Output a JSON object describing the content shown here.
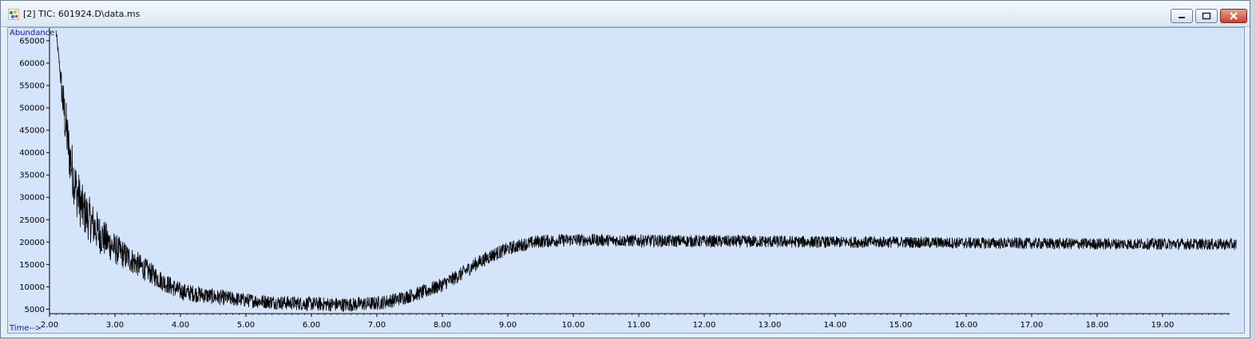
{
  "window": {
    "title": "[2] TIC: 601924.D\\data.ms",
    "icon": "chromatogram-app-icon",
    "controls": {
      "minimize": "minimize-icon",
      "maximize": "maximize-icon",
      "close": "close-icon"
    }
  },
  "chart_data": {
    "type": "line",
    "title": "",
    "ylabel": "Abundance",
    "xlabel": "Time-->",
    "xlim": [
      2.0,
      20.0
    ],
    "ylim": [
      4000,
      67500
    ],
    "y_ticks": [
      {
        "value": 5000,
        "label": "5000"
      },
      {
        "value": 10000,
        "label": "10000"
      },
      {
        "value": 15000,
        "label": "15000"
      },
      {
        "value": 20000,
        "label": "20000"
      },
      {
        "value": 25000,
        "label": "25000"
      },
      {
        "value": 30000,
        "label": "30000"
      },
      {
        "value": 35000,
        "label": "35000"
      },
      {
        "value": 40000,
        "label": "40000"
      },
      {
        "value": 45000,
        "label": "45000"
      },
      {
        "value": 50000,
        "label": "50000"
      },
      {
        "value": 55000,
        "label": "55000"
      },
      {
        "value": 60000,
        "label": "60000"
      },
      {
        "value": 65000,
        "label": "65000"
      }
    ],
    "x_ticks": [
      {
        "value": 2,
        "label": "2.00"
      },
      {
        "value": 3,
        "label": "3.00"
      },
      {
        "value": 4,
        "label": "4.00"
      },
      {
        "value": 5,
        "label": "5.00"
      },
      {
        "value": 6,
        "label": "6.00"
      },
      {
        "value": 7,
        "label": "7.00"
      },
      {
        "value": 8,
        "label": "8.00"
      },
      {
        "value": 9,
        "label": "9.00"
      },
      {
        "value": 10,
        "label": "10.00"
      },
      {
        "value": 11,
        "label": "11.00"
      },
      {
        "value": 12,
        "label": "12.00"
      },
      {
        "value": 13,
        "label": "13.00"
      },
      {
        "value": 14,
        "label": "14.00"
      },
      {
        "value": 15,
        "label": "15.00"
      },
      {
        "value": 16,
        "label": "16.00"
      },
      {
        "value": 17,
        "label": "17.00"
      },
      {
        "value": 18,
        "label": "18.00"
      },
      {
        "value": 19,
        "label": "19.00"
      }
    ],
    "series": [
      {
        "x": [
          2.1,
          2.15,
          2.2,
          2.25,
          2.3,
          2.4,
          2.5,
          2.75,
          3.0,
          3.25,
          3.5,
          3.75,
          4.0,
          4.5,
          5.0,
          5.5,
          6.0,
          6.5,
          7.0,
          7.25,
          7.5,
          7.75,
          8.0,
          8.25,
          8.5,
          8.75,
          9.0,
          9.25,
          9.5,
          10.0,
          11.0,
          12.0,
          13.0,
          14.0,
          15.0,
          16.0,
          17.0,
          18.0,
          19.0,
          20.0
        ],
        "y": [
          67000,
          60000,
          52000,
          46000,
          40000,
          32000,
          27500,
          22000,
          18500,
          16000,
          13500,
          11000,
          9000,
          7800,
          7000,
          6500,
          6200,
          6000,
          6300,
          7000,
          8000,
          9000,
          10500,
          12500,
          15000,
          17000,
          18500,
          19500,
          20200,
          20500,
          20300,
          20200,
          20100,
          20000,
          20000,
          19800,
          19700,
          19600,
          19600,
          19500
        ],
        "noise": [
          1000,
          1000,
          5000,
          6000,
          6000,
          6000,
          5500,
          4500,
          3500,
          3000,
          2500,
          2200,
          2000,
          1800,
          1600,
          1600,
          1600,
          1600,
          1600,
          1600,
          1600,
          1600,
          1600,
          1600,
          1600,
          1600,
          1500,
          1500,
          1500,
          1400,
          1400,
          1400,
          1400,
          1300,
          1300,
          1300,
          1300,
          1300,
          1300,
          1300
        ],
        "color": "#000000"
      }
    ],
    "axis_color": "#000000",
    "label_color": "#1414c8",
    "plot_bg": "#d3e4fb"
  }
}
